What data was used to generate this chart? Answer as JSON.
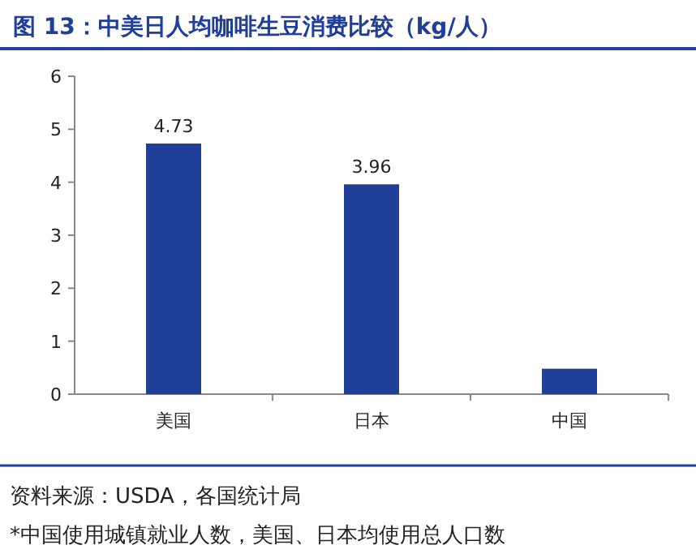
{
  "chart_data": {
    "type": "bar",
    "title": "图 13：中美日人均咖啡生豆消费比较（kg/人）",
    "categories": [
      "美国",
      "日本",
      "中国"
    ],
    "values": [
      4.73,
      3.96,
      0.48
    ],
    "value_labels": [
      "4.73",
      "3.96",
      null
    ],
    "color": "#1f3f99",
    "ylim": [
      0,
      6
    ],
    "yticks": [
      0,
      1,
      2,
      3,
      4,
      5,
      6
    ],
    "annotations": [
      "资料来源：USDA，各国统计局",
      "*中国使用城镇就业人数，美国、日本均使用总人口数"
    ]
  }
}
